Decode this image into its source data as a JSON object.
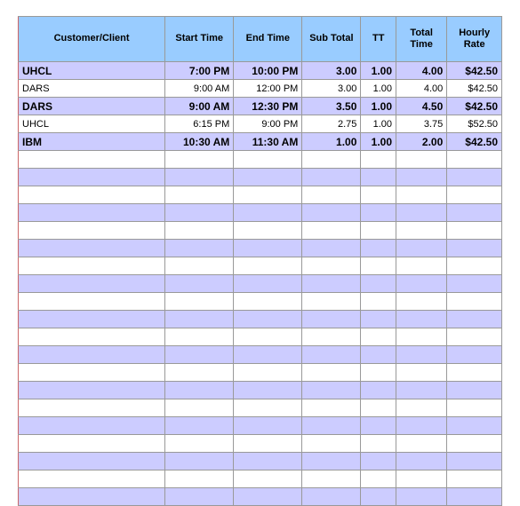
{
  "columns": [
    "Customer/Client",
    "Start Time",
    "End Time",
    "Sub Total",
    "TT",
    "Total Time",
    "Hourly Rate"
  ],
  "headerWrap": [
    "Customer/Client",
    "Start Time",
    "End Time",
    "Sub Total",
    "TT",
    "Total\nTime",
    "Hourly\nRate"
  ],
  "rows": [
    {
      "customer": "UHCL",
      "start": "7:00 PM",
      "end": "10:00 PM",
      "sub": "3.00",
      "tt": "1.00",
      "total": "4.00",
      "rate": "$42.50",
      "bold": true
    },
    {
      "customer": "DARS",
      "start": "9:00 AM",
      "end": "12:00 PM",
      "sub": "3.00",
      "tt": "1.00",
      "total": "4.00",
      "rate": "$42.50",
      "bold": false
    },
    {
      "customer": "DARS",
      "start": "9:00 AM",
      "end": "12:30 PM",
      "sub": "3.50",
      "tt": "1.00",
      "total": "4.50",
      "rate": "$42.50",
      "bold": true
    },
    {
      "customer": "UHCL",
      "start": "6:15 PM",
      "end": "9:00 PM",
      "sub": "2.75",
      "tt": "1.00",
      "total": "3.75",
      "rate": "$52.50",
      "bold": false
    },
    {
      "customer": "IBM",
      "start": "10:30 AM",
      "end": "11:30 AM",
      "sub": "1.00",
      "tt": "1.00",
      "total": "2.00",
      "rate": "$42.50",
      "bold": true
    }
  ],
  "emptyRowCount": 20,
  "colors": {
    "headerBg": "#99ccff",
    "stripeBlue": "#ccccff",
    "stripeWhite": "#ffffff",
    "border": "#999999",
    "leftEdge": "#cc6666"
  }
}
